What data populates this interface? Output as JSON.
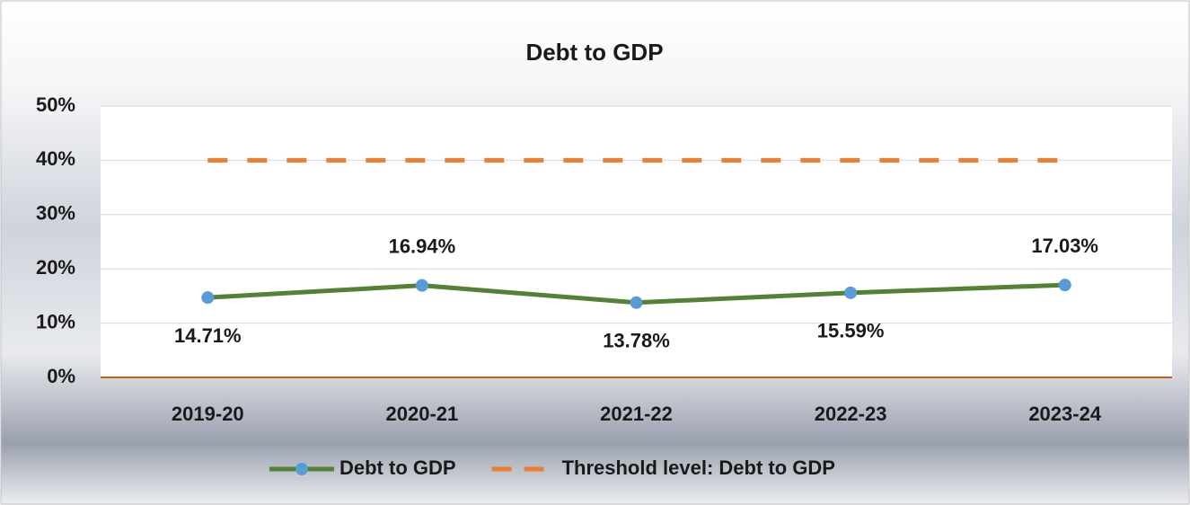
{
  "chart_data": {
    "type": "line",
    "title": "Debt to GDP",
    "categories": [
      "2019-20",
      "2020-21",
      "2021-22",
      "2022-23",
      "2023-24"
    ],
    "series": [
      {
        "name": "Debt to GDP",
        "color": "#548235",
        "marker_color": "#5b9bd5",
        "values": [
          14.71,
          16.94,
          13.78,
          15.59,
          17.03
        ],
        "value_labels": [
          "14.71%",
          "16.94%",
          "13.78%",
          "15.59%",
          "17.03%"
        ]
      },
      {
        "name": "Threshold level: Debt to GDP",
        "color": "#ed7d31",
        "dashed": true,
        "values": [
          40,
          40,
          40,
          40,
          40
        ]
      }
    ],
    "ylim": [
      0,
      50
    ],
    "yticks": [
      {
        "value": 0,
        "label": "0%"
      },
      {
        "value": 10,
        "label": "10%"
      },
      {
        "value": 20,
        "label": "20%"
      },
      {
        "value": 30,
        "label": "30%"
      },
      {
        "value": 40,
        "label": "40%"
      },
      {
        "value": 50,
        "label": "50%"
      }
    ],
    "grid": true,
    "legend": "bottom"
  }
}
